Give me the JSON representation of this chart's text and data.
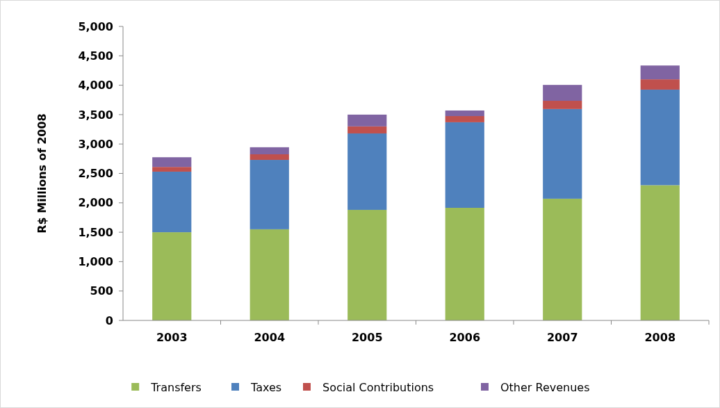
{
  "chart_data": {
    "type": "bar",
    "stacked": true,
    "ylabel": "R$ Millions of 2008",
    "categories": [
      "2003",
      "2004",
      "2005",
      "2006",
      "2007",
      "2008"
    ],
    "series": [
      {
        "name": "Transfers",
        "color": "#9bbb59",
        "values": [
          1500,
          1550,
          1880,
          1915,
          2070,
          2300
        ]
      },
      {
        "name": "Taxes",
        "color": "#4f81bd",
        "values": [
          1030,
          1180,
          1300,
          1455,
          1525,
          1625
        ]
      },
      {
        "name": "Social Contributions",
        "color": "#c0504d",
        "values": [
          80,
          95,
          120,
          105,
          140,
          175
        ]
      },
      {
        "name": "Other Revenues",
        "color": "#8064a2",
        "values": [
          165,
          120,
          200,
          95,
          270,
          235
        ]
      }
    ],
    "ylim": [
      0,
      5000
    ],
    "yticks": [
      {
        "value": 0,
        "label": "0"
      },
      {
        "value": 500,
        "label": "500"
      },
      {
        "value": 1000,
        "label": "1,000"
      },
      {
        "value": 1500,
        "label": "1,500"
      },
      {
        "value": 2000,
        "label": "2,000"
      },
      {
        "value": 2500,
        "label": "2,500"
      },
      {
        "value": 3000,
        "label": "3,000"
      },
      {
        "value": 3500,
        "label": "3,500"
      },
      {
        "value": 4000,
        "label": "4,000"
      },
      {
        "value": 4500,
        "label": "4,500"
      },
      {
        "value": 5000,
        "label": "5,000"
      }
    ],
    "grid": false,
    "legend": "bottom"
  }
}
